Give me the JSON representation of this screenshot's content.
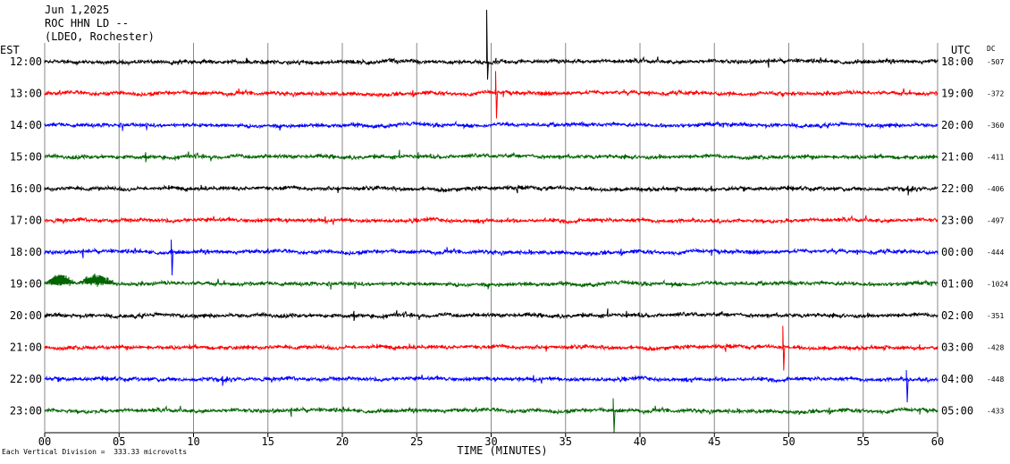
{
  "header": {
    "date": "Jun 1,2025",
    "station": "ROC HHN LD --",
    "network": "(LDEO, Rochester)"
  },
  "left_axis_label": "EST",
  "right_axis_label": "UTC",
  "dc_label": "DC",
  "footer": {
    "note": "Each Vertical Division =  333.33 microvolts"
  },
  "colors": {
    "black": "#000000",
    "red": "#ff0000",
    "blue": "#0000ff",
    "green": "#006400"
  },
  "chart_data": {
    "type": "line",
    "xlabel": "TIME (MINUTES)",
    "x_ticks": [
      "00",
      "05",
      "10",
      "15",
      "20",
      "25",
      "30",
      "35",
      "40",
      "45",
      "50",
      "55",
      "60"
    ],
    "xlim": [
      0,
      60
    ],
    "grid": true,
    "rows": [
      {
        "est": "12:00",
        "utc": "18:00",
        "dc": "-507",
        "color": "black"
      },
      {
        "est": "13:00",
        "utc": "19:00",
        "dc": "-372",
        "color": "red"
      },
      {
        "est": "14:00",
        "utc": "20:00",
        "dc": "-360",
        "color": "blue"
      },
      {
        "est": "15:00",
        "utc": "21:00",
        "dc": "-411",
        "color": "green"
      },
      {
        "est": "16:00",
        "utc": "22:00",
        "dc": "-406",
        "color": "black"
      },
      {
        "est": "17:00",
        "utc": "23:00",
        "dc": "-497",
        "color": "red"
      },
      {
        "est": "18:00",
        "utc": "00:00",
        "dc": "-444",
        "color": "blue"
      },
      {
        "est": "19:00",
        "utc": "01:00",
        "dc": "-1024",
        "color": "green"
      },
      {
        "est": "20:00",
        "utc": "02:00",
        "dc": "-351",
        "color": "black"
      },
      {
        "est": "21:00",
        "utc": "03:00",
        "dc": "-428",
        "color": "red"
      },
      {
        "est": "22:00",
        "utc": "04:00",
        "dc": "-448",
        "color": "blue"
      },
      {
        "est": "23:00",
        "utc": "05:00",
        "dc": "-433",
        "color": "green"
      }
    ]
  }
}
